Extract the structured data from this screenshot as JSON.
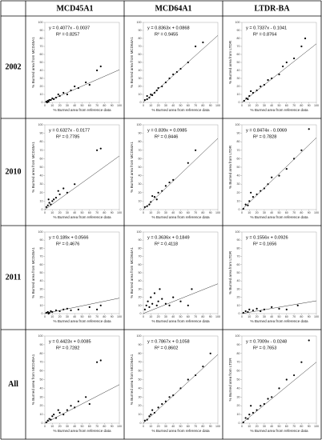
{
  "table": {
    "column_headers": [
      "MCD45A1",
      "MCD64A1",
      "LTDR-BA"
    ],
    "row_labels": [
      "2002",
      "2010",
      "2011",
      "All"
    ]
  },
  "chart_data": [
    {
      "type": "scatter",
      "xlabel": "% Burned area from reference data",
      "ylabel": "% Burned area from MCD45A1",
      "xlim": [
        0,
        100
      ],
      "ylim": [
        0,
        100
      ],
      "xticks": [
        0,
        10,
        20,
        30,
        40,
        50,
        60,
        70,
        80,
        90,
        100
      ],
      "yticks": [
        0,
        10,
        20,
        30,
        40,
        50,
        60,
        70,
        80,
        90,
        100
      ],
      "color": "#000000",
      "x": [
        2,
        4,
        5,
        8,
        10,
        12,
        15,
        18,
        20,
        25,
        30,
        35,
        40,
        45,
        55,
        60,
        70,
        75,
        3,
        6
      ],
      "y": [
        1,
        2,
        1,
        3,
        5,
        4,
        6,
        10,
        8,
        12,
        10,
        15,
        20,
        18,
        25,
        22,
        40,
        45,
        0,
        3
      ],
      "fit": {
        "slope": 0.4077,
        "intercept": -0.0037,
        "label": "y = 0.4077x - 0.0037"
      },
      "r2": {
        "value": 0.8257,
        "label": "R² = 0.8257"
      }
    },
    {
      "type": "scatter",
      "xlabel": "% Burned area from reference data",
      "ylabel": "% Burned area from MCD64A1",
      "xlim": [
        0,
        100
      ],
      "ylim": [
        0,
        100
      ],
      "xticks": [
        0,
        10,
        20,
        30,
        40,
        50,
        60,
        70,
        80,
        90,
        100
      ],
      "yticks": [
        0,
        10,
        20,
        30,
        40,
        50,
        60,
        70,
        80,
        90,
        100
      ],
      "color": "#000000",
      "x": [
        2,
        5,
        8,
        10,
        15,
        20,
        25,
        30,
        35,
        40,
        45,
        50,
        60,
        70,
        80,
        5,
        12,
        18
      ],
      "y": [
        3,
        4,
        6,
        10,
        12,
        18,
        20,
        25,
        30,
        35,
        38,
        42,
        50,
        70,
        75,
        8,
        9,
        15
      ],
      "fit": {
        "slope": 0.8363,
        "intercept": 0.0868,
        "label": "y = 0.8363x + 0.0868"
      },
      "r2": {
        "value": 0.9455,
        "label": "R² = 0.9455"
      }
    },
    {
      "type": "scatter",
      "xlabel": "% Burned area from reference data",
      "ylabel": "% Burned area from LTDR",
      "xlim": [
        0,
        100
      ],
      "ylim": [
        0,
        100
      ],
      "xticks": [
        0,
        10,
        20,
        30,
        40,
        50,
        60,
        70,
        80,
        90,
        100
      ],
      "yticks": [
        0,
        10,
        20,
        30,
        40,
        50,
        60,
        70,
        80,
        90,
        100
      ],
      "color": "#000000",
      "x": [
        3,
        6,
        10,
        15,
        20,
        25,
        30,
        35,
        40,
        50,
        55,
        60,
        70,
        80,
        85,
        8,
        12
      ],
      "y": [
        2,
        5,
        8,
        12,
        15,
        20,
        22,
        28,
        30,
        35,
        45,
        50,
        55,
        70,
        80,
        4,
        14
      ],
      "fit": {
        "slope": 0.7337,
        "intercept": -0.1041,
        "label": "y = 0.7337x - 0.1041"
      },
      "r2": {
        "value": 0.8764,
        "label": "R² = 0.8764"
      }
    },
    {
      "type": "scatter",
      "xlabel": "% Burned area from reference data",
      "ylabel": "% Burned area from MCD45A1",
      "xlim": [
        0,
        100
      ],
      "ylim": [
        0,
        100
      ],
      "xticks": [
        0,
        10,
        20,
        30,
        40,
        50,
        60,
        70,
        80,
        90,
        100
      ],
      "yticks": [
        0,
        10,
        20,
        30,
        40,
        50,
        60,
        70,
        80,
        90,
        100
      ],
      "color": "#000000",
      "x": [
        2,
        4,
        6,
        8,
        10,
        12,
        15,
        20,
        25,
        30,
        40,
        70,
        75,
        5,
        18
      ],
      "y": [
        3,
        5,
        8,
        6,
        10,
        12,
        14,
        18,
        25,
        20,
        30,
        70,
        72,
        12,
        22
      ],
      "fit": {
        "slope": 0.6327,
        "intercept": -0.0177,
        "label": "y = 0.6327x - 0.0177"
      },
      "r2": {
        "value": 0.7785,
        "label": "R² = 0.7785"
      }
    },
    {
      "type": "scatter",
      "xlabel": "% Burned area from reference data",
      "ylabel": "% Burned area from MCD64A1",
      "xlim": [
        0,
        100
      ],
      "ylim": [
        0,
        100
      ],
      "xticks": [
        0,
        10,
        20,
        30,
        40,
        50,
        60,
        70,
        80,
        90,
        100
      ],
      "yticks": [
        0,
        10,
        20,
        30,
        40,
        50,
        60,
        70,
        80,
        90,
        100
      ],
      "color": "#000000",
      "x": [
        2,
        5,
        8,
        10,
        15,
        20,
        25,
        30,
        35,
        40,
        60,
        70,
        12,
        18
      ],
      "y": [
        3,
        4,
        6,
        9,
        15,
        20,
        22,
        28,
        32,
        35,
        55,
        70,
        16,
        12
      ],
      "fit": {
        "slope": 0.839,
        "intercept": 0.0985,
        "label": "y = 0.839x + 0.0985"
      },
      "r2": {
        "value": 0.8446,
        "label": "R² = 0.8446"
      }
    },
    {
      "type": "scatter",
      "xlabel": "% Burned area from reference data",
      "ylabel": "% Burned area from LTDR",
      "xlim": [
        0,
        100
      ],
      "ylim": [
        0,
        100
      ],
      "xticks": [
        0,
        10,
        20,
        30,
        40,
        50,
        60,
        70,
        80,
        90,
        100
      ],
      "yticks": [
        0,
        10,
        20,
        30,
        40,
        50,
        60,
        70,
        80,
        90,
        100
      ],
      "color": "#000000",
      "x": [
        2,
        5,
        8,
        10,
        15,
        20,
        25,
        30,
        35,
        40,
        50,
        60,
        70,
        80,
        90,
        12
      ],
      "y": [
        1,
        6,
        5,
        10,
        15,
        18,
        22,
        25,
        30,
        38,
        40,
        48,
        60,
        70,
        95,
        20
      ],
      "fit": {
        "slope": 0.8474,
        "intercept": -0.0069,
        "label": "y = 0.8474x - 0.0069"
      },
      "r2": {
        "value": 0.7828,
        "label": "R² = 0.7828"
      }
    },
    {
      "type": "scatter",
      "xlabel": "% Burned area from reference data",
      "ylabel": "% Burned area from MCD45A1",
      "xlim": [
        0,
        100
      ],
      "ylim": [
        0,
        100
      ],
      "xticks": [
        0,
        10,
        20,
        30,
        40,
        50,
        60,
        70,
        80,
        90,
        100
      ],
      "yticks": [
        0,
        10,
        20,
        30,
        40,
        50,
        60,
        70,
        80,
        90,
        100
      ],
      "color": "#000000",
      "x": [
        2,
        4,
        6,
        8,
        10,
        15,
        20,
        25,
        30,
        35,
        45,
        60,
        70,
        75,
        5
      ],
      "y": [
        1,
        2,
        1,
        3,
        2,
        4,
        3,
        5,
        6,
        4,
        5,
        8,
        5,
        10,
        0
      ],
      "fit": {
        "slope": 0.189,
        "intercept": 0.0566,
        "label": "y = 0.189x + 0.0566"
      },
      "r2": {
        "value": 0.4676,
        "label": "R² = 0.4676"
      }
    },
    {
      "type": "scatter",
      "xlabel": "% Burned area from reference data",
      "ylabel": "% Burned area from MCD64A1",
      "xlim": [
        0,
        100
      ],
      "ylim": [
        0,
        100
      ],
      "xticks": [
        0,
        10,
        20,
        30,
        40,
        50,
        60,
        70,
        80,
        90,
        100
      ],
      "yticks": [
        0,
        10,
        20,
        30,
        40,
        50,
        60,
        70,
        80,
        90,
        100
      ],
      "color": "#000000",
      "x": [
        2,
        4,
        6,
        8,
        10,
        12,
        15,
        18,
        20,
        22,
        25,
        30,
        35,
        40,
        50,
        60,
        65
      ],
      "y": [
        5,
        10,
        15,
        8,
        20,
        12,
        25,
        10,
        15,
        30,
        18,
        12,
        10,
        20,
        15,
        10,
        30
      ],
      "fit": {
        "slope": 0.3636,
        "intercept": 0.1849,
        "label": "y = 0.3636x + 0.1849"
      },
      "r2": {
        "value": 0.4118,
        "label": "R² = 0.4118"
      }
    },
    {
      "type": "scatter",
      "xlabel": "% Burned area from reference data",
      "ylabel": "% Burned area from LTDR",
      "xlim": [
        0,
        100
      ],
      "ylim": [
        0,
        100
      ],
      "xticks": [
        0,
        10,
        20,
        30,
        40,
        50,
        60,
        70,
        80,
        90,
        100
      ],
      "yticks": [
        0,
        10,
        20,
        30,
        40,
        50,
        60,
        70,
        80,
        90,
        100
      ],
      "color": "#000000",
      "x": [
        2,
        5,
        8,
        10,
        15,
        20,
        25,
        30,
        40,
        50,
        60,
        75
      ],
      "y": [
        1,
        3,
        2,
        5,
        4,
        6,
        3,
        5,
        8,
        6,
        5,
        10
      ],
      "fit": {
        "slope": 0.1556,
        "intercept": 0.0926,
        "label": "y = 0.1556x + 0.0926"
      },
      "r2": {
        "value": 0.1656,
        "label": "R² = 0.1656"
      }
    },
    {
      "type": "scatter",
      "xlabel": "% Burned area from reference data",
      "ylabel": "% Burned area from MCD45A1",
      "xlim": [
        0,
        100
      ],
      "ylim": [
        0,
        100
      ],
      "xticks": [
        0,
        10,
        20,
        30,
        40,
        50,
        60,
        70,
        80,
        90,
        100
      ],
      "yticks": [
        0,
        10,
        20,
        30,
        40,
        50,
        60,
        70,
        80,
        90,
        100
      ],
      "color": "#000000",
      "x": [
        2,
        4,
        6,
        8,
        10,
        15,
        20,
        25,
        30,
        35,
        40,
        45,
        55,
        60,
        70,
        75,
        12,
        18
      ],
      "y": [
        1,
        3,
        5,
        4,
        8,
        6,
        12,
        10,
        15,
        20,
        18,
        25,
        30,
        22,
        70,
        72,
        10,
        15
      ],
      "fit": {
        "slope": 0.4423,
        "intercept": 0.0085,
        "label": "y = 0.4423x + 0.0085"
      },
      "r2": {
        "value": 0.7282,
        "label": "R² = 0.7282"
      }
    },
    {
      "type": "scatter",
      "xlabel": "% Burned area from reference data",
      "ylabel": "% Burned area from MCD64A1",
      "xlim": [
        0,
        100
      ],
      "ylim": [
        0,
        100
      ],
      "xticks": [
        0,
        10,
        20,
        30,
        40,
        50,
        60,
        70,
        80,
        90,
        100
      ],
      "yticks": [
        0,
        10,
        20,
        30,
        40,
        50,
        60,
        70,
        80,
        90,
        100
      ],
      "color": "#000000",
      "x": [
        2,
        5,
        8,
        10,
        15,
        20,
        25,
        30,
        35,
        40,
        50,
        60,
        70,
        80,
        90,
        12
      ],
      "y": [
        3,
        4,
        8,
        10,
        12,
        18,
        22,
        25,
        30,
        32,
        40,
        50,
        55,
        65,
        80,
        15
      ],
      "fit": {
        "slope": 0.7867,
        "intercept": 0.1058,
        "label": "y = 0.7867x + 0.1058"
      },
      "r2": {
        "value": 0.8602,
        "label": "R² = 0.8602"
      }
    },
    {
      "type": "scatter",
      "xlabel": "% Burned area from reference data",
      "ylabel": "% Burned area from LTDR",
      "xlim": [
        0,
        100
      ],
      "ylim": [
        0,
        100
      ],
      "xticks": [
        0,
        10,
        20,
        30,
        40,
        50,
        60,
        70,
        80,
        90,
        100
      ],
      "yticks": [
        0,
        10,
        20,
        30,
        40,
        50,
        60,
        70,
        80,
        90,
        100
      ],
      "color": "#000000",
      "x": [
        2,
        5,
        8,
        10,
        15,
        20,
        25,
        30,
        35,
        40,
        50,
        60,
        70,
        80,
        90,
        12
      ],
      "y": [
        1,
        6,
        5,
        10,
        12,
        15,
        20,
        22,
        28,
        30,
        40,
        50,
        55,
        70,
        95,
        20
      ],
      "fit": {
        "slope": 0.7009,
        "intercept": -0.0248,
        "label": "y = 0.7009x - 0.0248"
      },
      "r2": {
        "value": 0.7653,
        "label": "R² = 0.7653"
      }
    }
  ]
}
